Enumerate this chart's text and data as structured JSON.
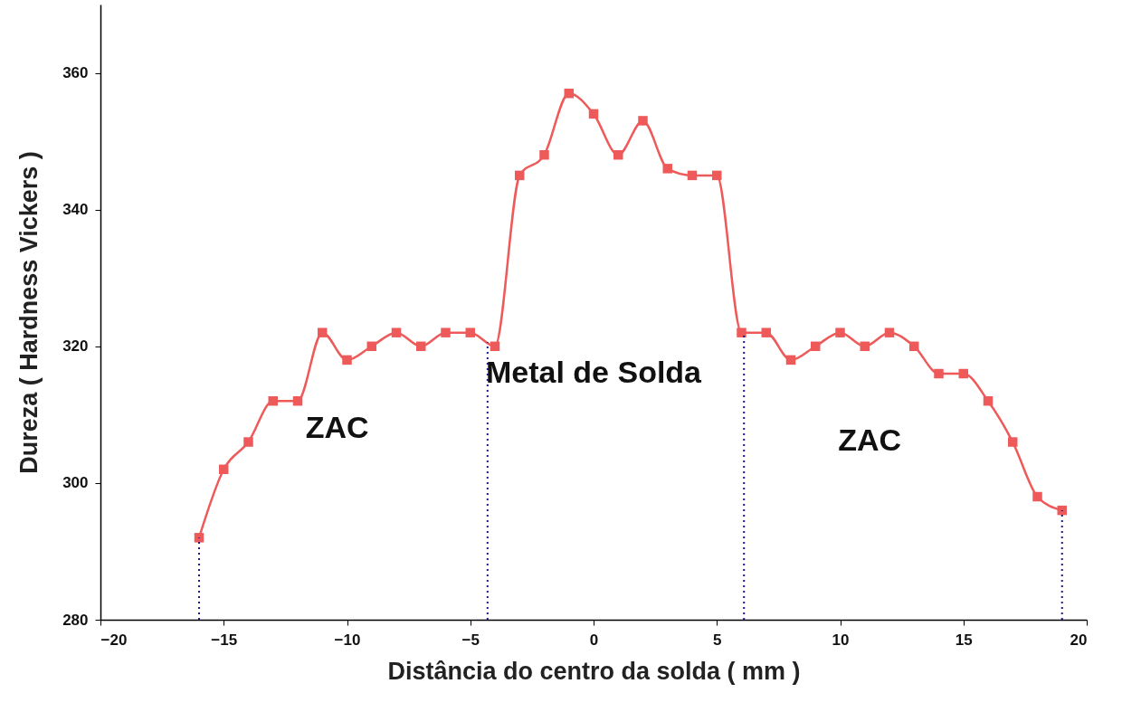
{
  "chart_data": {
    "type": "line",
    "xlabel": "Distância do centro da solda ( mm )",
    "ylabel": "Dureza ( Hardness Vickers )",
    "x": [
      -16,
      -15,
      -14,
      -13,
      -12,
      -11,
      -10,
      -9,
      -8,
      -7,
      -6,
      -5,
      -4,
      -3,
      -2,
      -1,
      0,
      1,
      2,
      3,
      4,
      5,
      6,
      7,
      8,
      9,
      10,
      11,
      12,
      13,
      14,
      15,
      16,
      17,
      18,
      19
    ],
    "series": [
      {
        "color": "#ee5a5a",
        "values": [
          292,
          302,
          306,
          312,
          312,
          322,
          318,
          320,
          322,
          320,
          322,
          322,
          320,
          345,
          348,
          357,
          354,
          348,
          353,
          346,
          345,
          345,
          322,
          322,
          318,
          320,
          322,
          320,
          322,
          320,
          316,
          316,
          312,
          306,
          298,
          296
        ]
      }
    ],
    "xlim": [
      -20,
      20
    ],
    "xticks": [
      -20,
      -15,
      -10,
      -5,
      0,
      5,
      10,
      15,
      20
    ],
    "ylim": [
      280,
      370
    ],
    "yticks": [
      280,
      300,
      320,
      340,
      360
    ],
    "marker": "square",
    "line_style": "solid",
    "grid": false,
    "ref_lines": [
      {
        "axis": "x",
        "value": -16,
        "color": "#1a1a8c",
        "line_style": "dotted"
      },
      {
        "axis": "x",
        "value": -4.3,
        "color": "#1a1a8c",
        "line_style": "dotted"
      },
      {
        "axis": "x",
        "value": 6.1,
        "color": "#1a1a8c",
        "line_style": "dotted"
      },
      {
        "axis": "x",
        "value": 19,
        "color": "#1a1a8c",
        "line_style": "dotted"
      }
    ],
    "annotations": [
      "ZAC",
      "Metal de Solda",
      "ZAC"
    ]
  }
}
